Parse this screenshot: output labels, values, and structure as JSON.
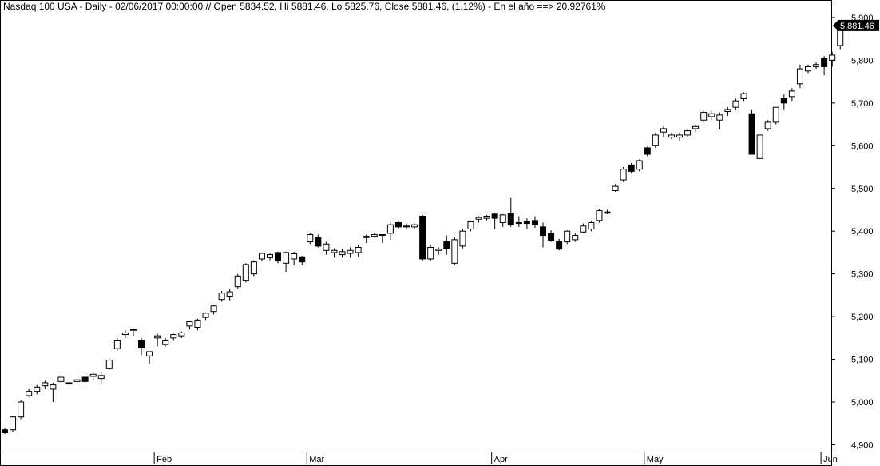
{
  "chart_data": {
    "type": "candlestick",
    "title": "Nasdaq 100 USA - Daily - 02/06/2017 00:00:00 // Open 5834.52, Hi 5881.46, Lo 5825.76, Close 5881.46, (1.12%) - En el año ==> 20.92761%",
    "last_price_label": "5,881.46",
    "ylim": [
      4880,
      5950
    ],
    "grid": false,
    "y_ticks": [
      {
        "value": 4900,
        "label": "4,900"
      },
      {
        "value": 5000,
        "label": "5,000"
      },
      {
        "value": 5100,
        "label": "5,100"
      },
      {
        "value": 5200,
        "label": "5,200"
      },
      {
        "value": 5300,
        "label": "5,300"
      },
      {
        "value": 5400,
        "label": "5,400"
      },
      {
        "value": 5500,
        "label": "5,500"
      },
      {
        "value": 5600,
        "label": "5,600"
      },
      {
        "value": 5700,
        "label": "5,700"
      },
      {
        "value": 5800,
        "label": "5,800"
      },
      {
        "value": 5900,
        "label": "5,900"
      }
    ],
    "x_ticks": [
      {
        "index": 19,
        "label": "Feb"
      },
      {
        "index": 38,
        "label": "Mar"
      },
      {
        "index": 61,
        "label": "Apr"
      },
      {
        "index": 80,
        "label": "May"
      },
      {
        "index": 102,
        "label": "Jun"
      }
    ],
    "colors": {
      "up": "#ffffff",
      "down": "#000000",
      "outline": "#000000",
      "last_price_bg": "#000000",
      "last_price_text": "#ffffff"
    },
    "candles": [
      [
        4935,
        4940,
        4925,
        4928
      ],
      [
        4935,
        4968,
        4930,
        4965
      ],
      [
        4965,
        5005,
        4960,
        5000
      ],
      [
        5015,
        5030,
        5012,
        5025
      ],
      [
        5025,
        5040,
        5018,
        5035
      ],
      [
        5038,
        5050,
        5030,
        5045
      ],
      [
        5030,
        5045,
        5000,
        5040
      ],
      [
        5048,
        5065,
        5042,
        5058
      ],
      [
        5045,
        5052,
        5038,
        5042
      ],
      [
        5048,
        5056,
        5042,
        5052
      ],
      [
        5058,
        5062,
        5042,
        5048
      ],
      [
        5060,
        5070,
        5050,
        5065
      ],
      [
        5055,
        5070,
        5040,
        5062
      ],
      [
        5078,
        5102,
        5075,
        5098
      ],
      [
        5125,
        5150,
        5120,
        5145
      ],
      [
        5158,
        5168,
        5150,
        5162
      ],
      [
        5170,
        5172,
        5155,
        5168
      ],
      [
        5145,
        5150,
        5110,
        5128
      ],
      [
        5108,
        5118,
        5090,
        5118
      ],
      [
        5150,
        5160,
        5130,
        5155
      ],
      [
        5135,
        5150,
        5130,
        5145
      ],
      [
        5150,
        5160,
        5145,
        5158
      ],
      [
        5155,
        5165,
        5150,
        5162
      ],
      [
        5178,
        5190,
        5170,
        5188
      ],
      [
        5175,
        5195,
        5168,
        5192
      ],
      [
        5198,
        5210,
        5192,
        5208
      ],
      [
        5212,
        5228,
        5205,
        5225
      ],
      [
        5240,
        5260,
        5235,
        5255
      ],
      [
        5248,
        5265,
        5238,
        5258
      ],
      [
        5270,
        5300,
        5265,
        5295
      ],
      [
        5285,
        5325,
        5280,
        5322
      ],
      [
        5300,
        5332,
        5295,
        5328
      ],
      [
        5335,
        5350,
        5330,
        5348
      ],
      [
        5338,
        5348,
        5332,
        5345
      ],
      [
        5350,
        5352,
        5325,
        5330
      ],
      [
        5325,
        5352,
        5305,
        5350
      ],
      [
        5335,
        5352,
        5320,
        5347
      ],
      [
        5340,
        5342,
        5320,
        5328
      ],
      [
        5375,
        5395,
        5370,
        5392
      ],
      [
        5385,
        5392,
        5362,
        5365
      ],
      [
        5355,
        5375,
        5345,
        5370
      ],
      [
        5350,
        5360,
        5338,
        5355
      ],
      [
        5345,
        5358,
        5338,
        5352
      ],
      [
        5348,
        5362,
        5338,
        5355
      ],
      [
        5350,
        5368,
        5340,
        5362
      ],
      [
        5385,
        5392,
        5372,
        5388
      ],
      [
        5388,
        5395,
        5385,
        5392
      ],
      [
        5390,
        5392,
        5372,
        5392
      ],
      [
        5395,
        5420,
        5380,
        5415
      ],
      [
        5420,
        5425,
        5405,
        5410
      ],
      [
        5412,
        5418,
        5405,
        5410
      ],
      [
        5410,
        5418,
        5405,
        5415
      ],
      [
        5435,
        5438,
        5330,
        5335
      ],
      [
        5335,
        5368,
        5330,
        5362
      ],
      [
        5355,
        5362,
        5345,
        5358
      ],
      [
        5375,
        5390,
        5345,
        5360
      ],
      [
        5325,
        5385,
        5320,
        5380
      ],
      [
        5365,
        5405,
        5360,
        5400
      ],
      [
        5405,
        5425,
        5400,
        5422
      ],
      [
        5428,
        5435,
        5420,
        5432
      ],
      [
        5430,
        5438,
        5425,
        5435
      ],
      [
        5440,
        5442,
        5405,
        5430
      ],
      [
        5420,
        5440,
        5410,
        5438
      ],
      [
        5442,
        5478,
        5410,
        5415
      ],
      [
        5420,
        5435,
        5410,
        5418
      ],
      [
        5422,
        5430,
        5405,
        5418
      ],
      [
        5425,
        5435,
        5408,
        5415
      ],
      [
        5410,
        5420,
        5362,
        5390
      ],
      [
        5395,
        5402,
        5375,
        5378
      ],
      [
        5375,
        5382,
        5355,
        5358
      ],
      [
        5375,
        5402,
        5370,
        5400
      ],
      [
        5380,
        5395,
        5375,
        5390
      ],
      [
        5398,
        5418,
        5395,
        5412
      ],
      [
        5405,
        5425,
        5400,
        5420
      ],
      [
        5425,
        5452,
        5420,
        5448
      ],
      [
        5445,
        5450,
        5440,
        5442
      ],
      [
        5495,
        5510,
        5492,
        5505
      ],
      [
        5520,
        5550,
        5515,
        5545
      ],
      [
        5555,
        5560,
        5535,
        5540
      ],
      [
        5545,
        5568,
        5540,
        5565
      ],
      [
        5595,
        5598,
        5575,
        5580
      ],
      [
        5600,
        5630,
        5595,
        5625
      ],
      [
        5632,
        5645,
        5620,
        5640
      ],
      [
        5620,
        5630,
        5615,
        5625
      ],
      [
        5620,
        5630,
        5612,
        5625
      ],
      [
        5625,
        5640,
        5620,
        5635
      ],
      [
        5640,
        5650,
        5632,
        5645
      ],
      [
        5660,
        5685,
        5655,
        5678
      ],
      [
        5668,
        5682,
        5660,
        5675
      ],
      [
        5660,
        5678,
        5638,
        5672
      ],
      [
        5680,
        5690,
        5670,
        5685
      ],
      [
        5690,
        5710,
        5685,
        5705
      ],
      [
        5710,
        5725,
        5705,
        5722
      ],
      [
        5675,
        5685,
        5580,
        5580
      ],
      [
        5570,
        5625,
        5570,
        5625
      ],
      [
        5640,
        5660,
        5635,
        5655
      ],
      [
        5655,
        5690,
        5650,
        5690
      ],
      [
        5710,
        5720,
        5685,
        5700
      ],
      [
        5715,
        5735,
        5705,
        5728
      ],
      [
        5745,
        5790,
        5735,
        5780
      ],
      [
        5775,
        5790,
        5770,
        5785
      ],
      [
        5785,
        5795,
        5780,
        5790
      ],
      [
        5805,
        5810,
        5765,
        5785
      ],
      [
        5800,
        5820,
        5785,
        5812
      ],
      [
        5834.52,
        5881.46,
        5825.76,
        5881.46
      ]
    ]
  }
}
